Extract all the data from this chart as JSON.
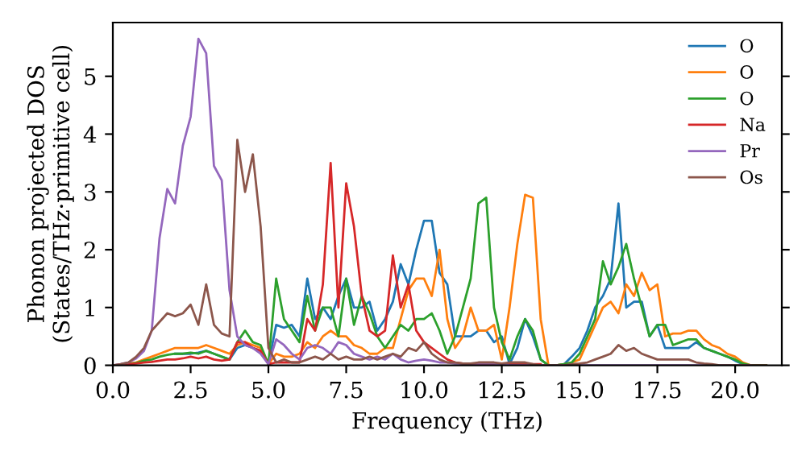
{
  "chart_data": {
    "type": "line",
    "xlabel": "Frequency (THz)",
    "ylabel": "Phonon projected DOS\n(States/THz·primitive cell)",
    "x": [
      0,
      0.25,
      0.5,
      0.75,
      1,
      1.25,
      1.5,
      1.75,
      2,
      2.25,
      2.5,
      2.75,
      3,
      3.25,
      3.5,
      3.75,
      4,
      4.25,
      4.5,
      4.75,
      5,
      5.25,
      5.5,
      5.75,
      6,
      6.25,
      6.5,
      6.75,
      7,
      7.25,
      7.5,
      7.75,
      8,
      8.25,
      8.5,
      8.75,
      9,
      9.25,
      9.5,
      9.75,
      10,
      10.25,
      10.5,
      10.75,
      11,
      11.25,
      11.5,
      11.75,
      12,
      12.25,
      12.5,
      12.75,
      13,
      13.25,
      13.5,
      13.75,
      14,
      14.25,
      14.5,
      14.75,
      15,
      15.25,
      15.5,
      15.75,
      16,
      16.25,
      16.5,
      16.75,
      17,
      17.25,
      17.5,
      17.75,
      18,
      18.25,
      18.5,
      18.75,
      19,
      19.25,
      19.5,
      19.75,
      20,
      20.25,
      20.5,
      20.75,
      21
    ],
    "series": [
      {
        "name": "O",
        "color": "#1f77b4",
        "values": [
          null,
          null,
          null,
          null,
          null,
          null,
          null,
          null,
          0.2,
          0.2,
          0.2,
          0.22,
          0.25,
          0.2,
          0.15,
          0.1,
          0.3,
          0.35,
          0.3,
          0.25,
          0.02,
          0.7,
          0.65,
          0.7,
          0.5,
          1.5,
          0.8,
          1.0,
          0.8,
          1.2,
          1.5,
          1.0,
          1.0,
          1.1,
          0.6,
          0.8,
          1.1,
          1.75,
          1.4,
          2.0,
          2.5,
          2.5,
          1.6,
          1.4,
          0.5,
          0.5,
          0.5,
          0.6,
          0.6,
          0.4,
          0.5,
          0.02,
          0.3,
          0.8,
          0.5,
          0.1,
          0,
          0,
          0.02,
          0.15,
          0.3,
          0.6,
          1.0,
          1.2,
          1.5,
          2.8,
          1.0,
          1.1,
          1.1,
          0.5,
          0.7,
          0.3,
          0.3,
          0.3,
          0.3,
          0.4,
          0.3,
          0.25,
          0.2,
          0.15,
          0.08,
          0.02,
          0,
          null,
          null
        ]
      },
      {
        "name": "O",
        "color": "#ff7f0e",
        "values": [
          null,
          null,
          0.03,
          0.05,
          0.1,
          0.15,
          0.2,
          0.25,
          0.3,
          0.3,
          0.3,
          0.3,
          0.35,
          0.3,
          0.25,
          0.2,
          0.35,
          0.4,
          0.35,
          0.3,
          0.02,
          0.2,
          0.15,
          0.15,
          0.2,
          0.4,
          0.3,
          0.5,
          0.6,
          0.5,
          0.5,
          0.35,
          0.3,
          0.2,
          0.2,
          0.3,
          0.3,
          0.8,
          1.3,
          1.5,
          1.5,
          1.2,
          2.0,
          0.8,
          0.3,
          0.5,
          1.0,
          0.6,
          0.6,
          0.7,
          0.1,
          1.0,
          2.1,
          2.95,
          2.9,
          0.8,
          0,
          0,
          0.02,
          0.05,
          0.1,
          0.4,
          0.7,
          1.0,
          1.1,
          0.9,
          1.4,
          1.2,
          1.6,
          1.3,
          1.4,
          0.5,
          0.55,
          0.55,
          0.6,
          0.6,
          0.45,
          0.35,
          0.3,
          0.2,
          0.15,
          0.05,
          0,
          0,
          0
        ]
      },
      {
        "name": "O",
        "color": "#2ca02c",
        "values": [
          null,
          null,
          0.02,
          0.04,
          0.08,
          0.1,
          0.15,
          0.18,
          0.2,
          0.2,
          0.22,
          0.2,
          0.25,
          0.2,
          0.15,
          0.1,
          0.4,
          0.6,
          0.4,
          0.35,
          0.02,
          1.5,
          0.8,
          0.6,
          0.4,
          1.2,
          0.6,
          1.0,
          1.0,
          0.5,
          1.5,
          0.7,
          1.2,
          0.9,
          0.5,
          0.3,
          0.5,
          0.7,
          0.6,
          0.8,
          0.8,
          0.9,
          0.6,
          0.2,
          0.5,
          1.0,
          1.5,
          2.8,
          2.9,
          1.0,
          0.4,
          0.1,
          0.5,
          0.8,
          0.6,
          0.1,
          0,
          0,
          0.02,
          0.05,
          0.2,
          0.5,
          0.8,
          1.8,
          1.4,
          1.7,
          2.1,
          1.5,
          1.0,
          0.5,
          0.7,
          0.7,
          0.35,
          0.4,
          0.45,
          0.45,
          0.3,
          0.25,
          0.2,
          0.15,
          0.1,
          0.03,
          0,
          0,
          0
        ]
      },
      {
        "name": "Na",
        "color": "#d62728",
        "values": [
          0,
          0.01,
          0.02,
          0.03,
          0.05,
          0.06,
          0.08,
          0.1,
          0.1,
          0.12,
          0.15,
          0.12,
          0.15,
          0.1,
          0.08,
          0.1,
          0.4,
          0.4,
          0.3,
          0.25,
          0.02,
          0.05,
          0.05,
          0.05,
          0.05,
          0.8,
          0.6,
          1.4,
          3.5,
          1.0,
          3.15,
          2.4,
          1.2,
          0.6,
          0.5,
          0.6,
          1.9,
          1.0,
          1.4,
          0.6,
          0.4,
          0.3,
          0.2,
          0.1,
          0.05,
          0.03,
          0.02,
          0.02,
          0.02,
          0.02,
          0.02,
          0.02,
          0.02,
          0.02,
          0.02,
          0.02,
          null,
          null,
          null,
          null,
          null,
          null,
          null,
          null,
          null,
          null,
          null,
          null,
          null,
          null,
          null,
          null,
          null,
          null,
          null,
          null,
          null,
          null,
          null,
          null,
          null,
          null,
          null,
          null,
          null
        ]
      },
      {
        "name": "Pr",
        "color": "#9467bd",
        "values": [
          0,
          0.02,
          0.05,
          0.12,
          0.25,
          0.6,
          2.2,
          3.05,
          2.8,
          3.8,
          4.3,
          5.65,
          5.4,
          3.45,
          3.2,
          1.3,
          0.5,
          0.35,
          0.3,
          0.2,
          0.02,
          0.45,
          0.35,
          0.2,
          0.1,
          0.3,
          0.35,
          0.3,
          0.2,
          0.4,
          0.35,
          0.2,
          0.15,
          0.1,
          0.15,
          0.1,
          0.2,
          0.1,
          0.05,
          0.08,
          0.1,
          0.08,
          0.05,
          0.05,
          0.03,
          0.03,
          0.03,
          0.03,
          0.03,
          0.03,
          0.02,
          0,
          0,
          0,
          0,
          0,
          0,
          0,
          0,
          0,
          0,
          0,
          0,
          0,
          0,
          0,
          0,
          0,
          0,
          0,
          0,
          0,
          0,
          0,
          0,
          0,
          0,
          0,
          0,
          0,
          0,
          0,
          0,
          null,
          null
        ]
      },
      {
        "name": "Os",
        "color": "#8c564b",
        "values": [
          0,
          0.02,
          0.05,
          0.15,
          0.3,
          0.6,
          0.75,
          0.9,
          0.85,
          0.9,
          1.05,
          0.7,
          1.4,
          0.7,
          0.55,
          0.5,
          3.9,
          3.0,
          3.65,
          2.4,
          0.3,
          0.05,
          0.1,
          0.05,
          0.05,
          0.1,
          0.15,
          0.1,
          0.2,
          0.1,
          0.15,
          0.1,
          0.1,
          0.15,
          0.1,
          0.15,
          0.2,
          0.15,
          0.3,
          0.25,
          0.4,
          0.2,
          0.1,
          0.05,
          0.05,
          0.03,
          0.03,
          0.05,
          0.05,
          0.05,
          0.03,
          0.05,
          0.05,
          0.05,
          0.02,
          0,
          0,
          0,
          0,
          0.02,
          0.03,
          0.05,
          0.1,
          0.15,
          0.2,
          0.35,
          0.25,
          0.3,
          0.2,
          0.15,
          0.1,
          0.1,
          0.1,
          0.1,
          0.1,
          0.05,
          0.03,
          0.02,
          0,
          0,
          0,
          0,
          0,
          0,
          0
        ]
      }
    ],
    "xlim": [
      0,
      21.5
    ],
    "ylim": [
      0,
      5.93
    ],
    "xticks": [
      {
        "value": 0,
        "label": "0.0"
      },
      {
        "value": 2.5,
        "label": "2.5"
      },
      {
        "value": 5,
        "label": "5.0"
      },
      {
        "value": 7.5,
        "label": "7.5"
      },
      {
        "value": 10,
        "label": "10.0"
      },
      {
        "value": 12.5,
        "label": "12.5"
      },
      {
        "value": 15,
        "label": "15.0"
      },
      {
        "value": 17.5,
        "label": "17.5"
      },
      {
        "value": 20,
        "label": "20.0"
      }
    ],
    "yticks": [
      0,
      1,
      2,
      3,
      4,
      5
    ],
    "legend": "top right",
    "grid": false,
    "marker": "none",
    "line_style": "solid"
  }
}
